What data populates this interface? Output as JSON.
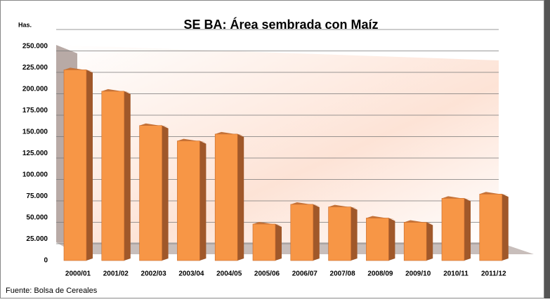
{
  "chart_data": {
    "type": "bar",
    "title": "SE BA: Área sembrada con Maíz",
    "y_label": "Has.",
    "source": "Fuente: Bolsa de Cereales",
    "categories": [
      "2000/01",
      "2001/02",
      "2002/03",
      "2003/04",
      "2004/05",
      "2005/06",
      "2006/07",
      "2007/08",
      "2008/09",
      "2009/10",
      "2010/11",
      "2011/12"
    ],
    "values": [
      230000,
      205000,
      165000,
      147000,
      155000,
      50000,
      73000,
      70000,
      57000,
      52000,
      80000,
      85000
    ],
    "color": "#f79646",
    "ylim": [
      0,
      250000
    ],
    "yticks": [
      0,
      {
        "value": 25000,
        "label": "25.000"
      },
      {
        "value": 50000,
        "label": "50.000"
      },
      {
        "value": 75000,
        "label": "75.000"
      },
      {
        "value": 100000,
        "label": "100.000"
      },
      {
        "value": 125000,
        "label": "125.000"
      },
      {
        "value": 150000,
        "label": "150.000"
      },
      {
        "value": 175000,
        "label": "175.000"
      },
      {
        "value": 200000,
        "label": "200.000"
      },
      {
        "value": 225000,
        "label": "225.000"
      },
      {
        "value": 250000,
        "label": "250.000"
      }
    ],
    "grid": true
  }
}
